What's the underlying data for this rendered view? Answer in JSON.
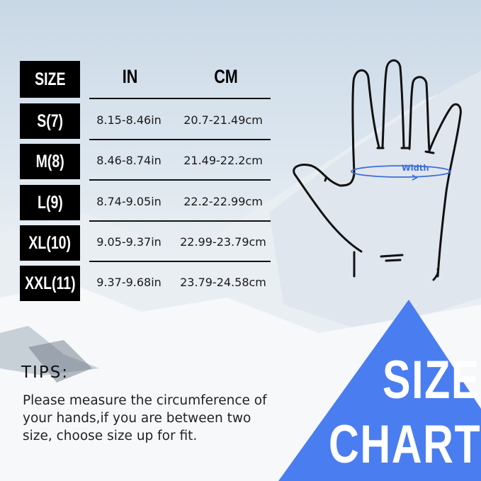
{
  "table": {
    "headers": {
      "size": "SIZE",
      "in": "IN",
      "cm": "CM"
    },
    "rows": [
      {
        "size": "S(7)",
        "in": "8.15-8.46in",
        "cm": "20.7-21.49cm"
      },
      {
        "size": "M(8)",
        "in": "8.46-8.74in",
        "cm": "21.49-22.2cm"
      },
      {
        "size": "L(9)",
        "in": "8.74-9.05in",
        "cm": "22.2-22.99cm"
      },
      {
        "size": "XL(10)",
        "in": "9.05-9.37in",
        "cm": "22.99-23.79cm"
      },
      {
        "size": "XXL(11)",
        "in": "9.37-9.68in",
        "cm": "23.79-24.58cm"
      }
    ]
  },
  "hand": {
    "width_label": "Width",
    "measure_color": "#3b6fd8"
  },
  "tips": {
    "title": "TIPS:",
    "body": "Please measure the circumference of your hands,if you are between two size, choose size up for fit."
  },
  "banner": {
    "line1": "SIZE",
    "line2": "CHART",
    "color": "#4a7df0"
  }
}
